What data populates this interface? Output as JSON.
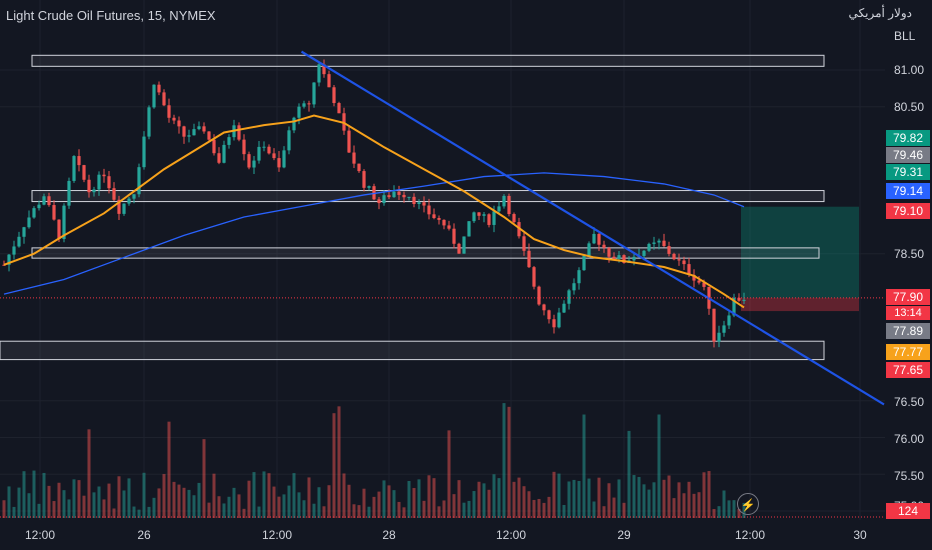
{
  "header": {
    "title": "Light Crude Oil Futures, 15, NYMEX",
    "currency_arabic": "دولار أمريكي",
    "currency_code": "BLL"
  },
  "colors": {
    "background": "#131722",
    "up": "#26a69a",
    "down": "#ef5350",
    "sma_short": "#f7a21b",
    "sma_long": "#2962ff",
    "trendline": "#1e53e5"
  },
  "price_badges": [
    {
      "label": "79.82",
      "value": 79.82,
      "color": "#089981"
    },
    {
      "label": "79.46",
      "value": 79.46,
      "color": "#787b86"
    },
    {
      "label": "79.31",
      "value": 79.31,
      "color": "#089981"
    },
    {
      "label": "79.14",
      "value": 79.14,
      "color": "#2962ff"
    },
    {
      "label": "79.10",
      "value": 79.1,
      "color": "#f23645"
    },
    {
      "label": "77.90",
      "value": 77.9,
      "color": "#f23645"
    },
    {
      "label": "77.89",
      "value": 77.89,
      "color": "#787b86"
    },
    {
      "label": "77.77",
      "value": 77.77,
      "color": "#f7a21b"
    },
    {
      "label": "77.65",
      "value": 77.65,
      "color": "#f23645"
    }
  ],
  "countdown": "13:14",
  "volume_badge": {
    "label": "124",
    "color": "#f23645"
  },
  "chart_data": {
    "type": "candlestick",
    "x_ticks": [
      "12:00",
      "26",
      "12:00",
      "28",
      "12:00",
      "29",
      "12:00",
      "30"
    ],
    "y_ticks": [
      "81.00",
      "80.50",
      "78.50",
      "77.90",
      "76.50",
      "76.00",
      "75.50",
      "75.00"
    ],
    "ylim": [
      74.8,
      81.35
    ],
    "last_price": 77.9,
    "close_path": [
      [
        0,
        78.35
      ],
      [
        4,
        78.9
      ],
      [
        8,
        79.3
      ],
      [
        11,
        78.75
      ],
      [
        14,
        79.8
      ],
      [
        17,
        79.35
      ],
      [
        20,
        79.6
      ],
      [
        23,
        79.1
      ],
      [
        26,
        79.35
      ],
      [
        30,
        80.85
      ],
      [
        33,
        80.35
      ],
      [
        36,
        80.1
      ],
      [
        40,
        80.2
      ],
      [
        43,
        79.75
      ],
      [
        46,
        80.3
      ],
      [
        49,
        79.7
      ],
      [
        52,
        80.0
      ],
      [
        55,
        79.65
      ],
      [
        58,
        80.4
      ],
      [
        61,
        80.55
      ],
      [
        63,
        81.1
      ],
      [
        66,
        80.6
      ],
      [
        69,
        79.9
      ],
      [
        72,
        79.45
      ],
      [
        75,
        79.2
      ],
      [
        78,
        79.35
      ],
      [
        81,
        79.3
      ],
      [
        84,
        79.1
      ],
      [
        88,
        78.9
      ],
      [
        91,
        78.55
      ],
      [
        94,
        79.05
      ],
      [
        97,
        78.95
      ],
      [
        100,
        79.3
      ],
      [
        104,
        78.5
      ],
      [
        107,
        77.85
      ],
      [
        110,
        77.55
      ],
      [
        112,
        77.85
      ],
      [
        115,
        78.25
      ],
      [
        118,
        78.75
      ],
      [
        121,
        78.5
      ],
      [
        124,
        78.4
      ],
      [
        128,
        78.55
      ],
      [
        131,
        78.65
      ],
      [
        134,
        78.45
      ],
      [
        137,
        78.25
      ],
      [
        140,
        78.05
      ],
      [
        142,
        77.35
      ],
      [
        144,
        77.55
      ],
      [
        146,
        77.88
      ],
      [
        148,
        77.9
      ]
    ],
    "sma_short": [
      [
        0,
        78.35
      ],
      [
        6,
        78.5
      ],
      [
        12,
        78.75
      ],
      [
        20,
        79.05
      ],
      [
        26,
        79.35
      ],
      [
        32,
        79.65
      ],
      [
        38,
        79.9
      ],
      [
        44,
        80.15
      ],
      [
        52,
        80.25
      ],
      [
        58,
        80.3
      ],
      [
        62,
        80.38
      ],
      [
        68,
        80.28
      ],
      [
        76,
        79.95
      ],
      [
        84,
        79.65
      ],
      [
        92,
        79.35
      ],
      [
        100,
        79.0
      ],
      [
        106,
        78.7
      ],
      [
        112,
        78.55
      ],
      [
        118,
        78.45
      ],
      [
        124,
        78.4
      ],
      [
        132,
        78.32
      ],
      [
        138,
        78.2
      ],
      [
        144,
        77.95
      ],
      [
        148,
        77.77
      ]
    ],
    "sma_long": [
      [
        0,
        77.95
      ],
      [
        12,
        78.15
      ],
      [
        24,
        78.45
      ],
      [
        36,
        78.75
      ],
      [
        48,
        79.0
      ],
      [
        60,
        79.15
      ],
      [
        72,
        79.3
      ],
      [
        84,
        79.42
      ],
      [
        96,
        79.55
      ],
      [
        108,
        79.6
      ],
      [
        120,
        79.55
      ],
      [
        132,
        79.45
      ],
      [
        142,
        79.3
      ],
      [
        148,
        79.14
      ]
    ],
    "trendline": [
      [
        59.5,
        81.25
      ],
      [
        176,
        76.45
      ]
    ],
    "zones": [
      {
        "from": 81.05,
        "to": 81.2,
        "x_end": 164
      },
      {
        "from": 79.21,
        "to": 79.36,
        "x_end": 164
      },
      {
        "from": 78.44,
        "to": 78.58,
        "x_end": 163
      },
      {
        "from": 77.06,
        "to": 77.31,
        "x_end": 164
      }
    ],
    "position": {
      "entry": 77.9,
      "target": 79.14,
      "stop": 77.72,
      "x_start": 148,
      "x_end": 171
    }
  }
}
